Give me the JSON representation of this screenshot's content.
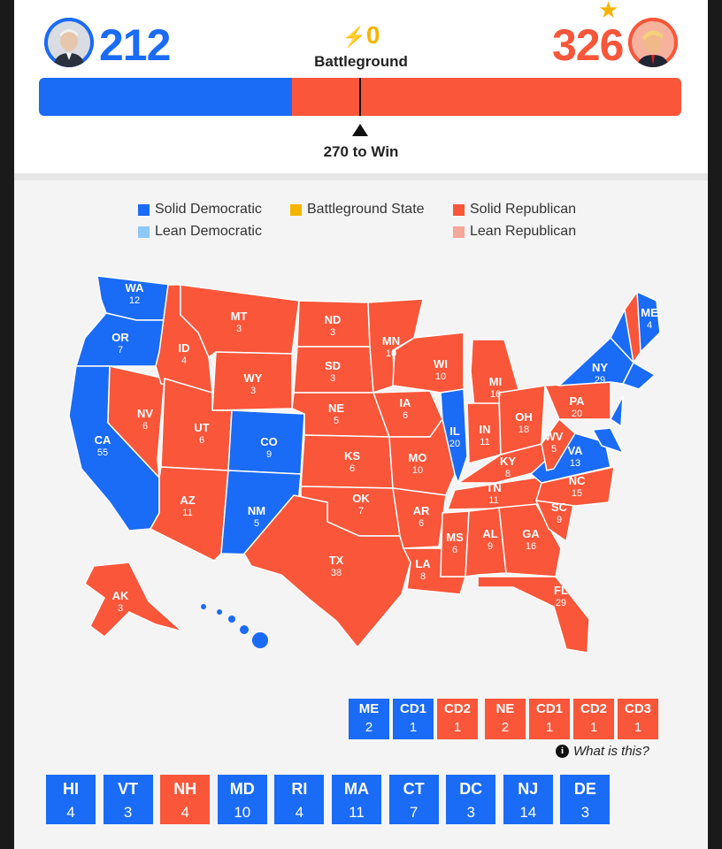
{
  "header": {
    "dem": {
      "ev": "212",
      "color": "#1a6bf5"
    },
    "rep": {
      "ev": "326",
      "color": "#f9563a",
      "winner_star": "★"
    },
    "battleground": {
      "count": "0",
      "icon": "bolt-icon",
      "label": "Battleground"
    },
    "progress": {
      "dem_ev": 212,
      "rep_ev": 326,
      "total": 538
    },
    "to_win_label": "270 to Win"
  },
  "legend": {
    "solid_dem": {
      "label": "Solid Democratic",
      "color": "#1a6bf5"
    },
    "lean_dem": {
      "label": "Lean Democratic",
      "color": "#8ec8f8"
    },
    "battleground": {
      "label": "Battleground State",
      "color": "#f6b400"
    },
    "solid_rep": {
      "label": "Solid Republican",
      "color": "#f9563a"
    },
    "lean_rep": {
      "label": "Lean Republican",
      "color": "#f7a69a"
    }
  },
  "states": [
    {
      "abbr": "WA",
      "ev": "12",
      "party": "D"
    },
    {
      "abbr": "OR",
      "ev": "7",
      "party": "D"
    },
    {
      "abbr": "CA",
      "ev": "55",
      "party": "D"
    },
    {
      "abbr": "NV",
      "ev": "6",
      "party": "R"
    },
    {
      "abbr": "ID",
      "ev": "4",
      "party": "R"
    },
    {
      "abbr": "MT",
      "ev": "3",
      "party": "R"
    },
    {
      "abbr": "WY",
      "ev": "3",
      "party": "R"
    },
    {
      "abbr": "UT",
      "ev": "6",
      "party": "R"
    },
    {
      "abbr": "AZ",
      "ev": "11",
      "party": "R"
    },
    {
      "abbr": "CO",
      "ev": "9",
      "party": "D"
    },
    {
      "abbr": "NM",
      "ev": "5",
      "party": "D"
    },
    {
      "abbr": "ND",
      "ev": "3",
      "party": "R"
    },
    {
      "abbr": "SD",
      "ev": "3",
      "party": "R"
    },
    {
      "abbr": "NE",
      "ev": "5",
      "party": "R"
    },
    {
      "abbr": "KS",
      "ev": "6",
      "party": "R"
    },
    {
      "abbr": "OK",
      "ev": "7",
      "party": "R"
    },
    {
      "abbr": "TX",
      "ev": "38",
      "party": "R"
    },
    {
      "abbr": "MN",
      "ev": "10",
      "party": "R"
    },
    {
      "abbr": "IA",
      "ev": "6",
      "party": "R"
    },
    {
      "abbr": "MO",
      "ev": "10",
      "party": "R"
    },
    {
      "abbr": "AR",
      "ev": "6",
      "party": "R"
    },
    {
      "abbr": "LA",
      "ev": "8",
      "party": "R"
    },
    {
      "abbr": "WI",
      "ev": "10",
      "party": "R"
    },
    {
      "abbr": "IL",
      "ev": "20",
      "party": "D"
    },
    {
      "abbr": "MI",
      "ev": "16",
      "party": "R"
    },
    {
      "abbr": "IN",
      "ev": "11",
      "party": "R"
    },
    {
      "abbr": "OH",
      "ev": "18",
      "party": "R"
    },
    {
      "abbr": "KY",
      "ev": "8",
      "party": "R"
    },
    {
      "abbr": "TN",
      "ev": "11",
      "party": "R"
    },
    {
      "abbr": "MS",
      "ev": "6",
      "party": "R"
    },
    {
      "abbr": "AL",
      "ev": "9",
      "party": "R"
    },
    {
      "abbr": "GA",
      "ev": "16",
      "party": "R"
    },
    {
      "abbr": "FL",
      "ev": "29",
      "party": "R"
    },
    {
      "abbr": "SC",
      "ev": "9",
      "party": "R"
    },
    {
      "abbr": "NC",
      "ev": "15",
      "party": "R"
    },
    {
      "abbr": "VA",
      "ev": "13",
      "party": "D"
    },
    {
      "abbr": "WV",
      "ev": "5",
      "party": "R"
    },
    {
      "abbr": "PA",
      "ev": "20",
      "party": "R"
    },
    {
      "abbr": "NY",
      "ev": "29",
      "party": "D"
    },
    {
      "abbr": "ME",
      "ev": "4",
      "party": "D"
    },
    {
      "abbr": "AK",
      "ev": "3",
      "party": "R"
    }
  ],
  "splits": {
    "maine": [
      {
        "top": "ME",
        "bot": "2",
        "party": "D"
      },
      {
        "top": "CD1",
        "bot": "1",
        "party": "D"
      },
      {
        "top": "CD2",
        "bot": "1",
        "party": "R"
      }
    ],
    "nebraska": [
      {
        "top": "NE",
        "bot": "2",
        "party": "R"
      },
      {
        "top": "CD1",
        "bot": "1",
        "party": "R"
      },
      {
        "top": "CD2",
        "bot": "1",
        "party": "R"
      },
      {
        "top": "CD3",
        "bot": "1",
        "party": "R"
      }
    ],
    "what_is_this": "What is this?"
  },
  "small_states": [
    {
      "abbr": "HI",
      "ev": "4",
      "party": "D"
    },
    {
      "abbr": "VT",
      "ev": "3",
      "party": "D"
    },
    {
      "abbr": "NH",
      "ev": "4",
      "party": "R"
    },
    {
      "abbr": "MD",
      "ev": "10",
      "party": "D"
    },
    {
      "abbr": "RI",
      "ev": "4",
      "party": "D"
    },
    {
      "abbr": "MA",
      "ev": "11",
      "party": "D"
    },
    {
      "abbr": "CT",
      "ev": "7",
      "party": "D"
    },
    {
      "abbr": "DC",
      "ev": "3",
      "party": "D"
    },
    {
      "abbr": "NJ",
      "ev": "14",
      "party": "D"
    },
    {
      "abbr": "DE",
      "ev": "3",
      "party": "D"
    }
  ]
}
